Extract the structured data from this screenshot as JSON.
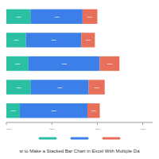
{
  "chart_data": {
    "type": "bar",
    "orientation": "horizontal",
    "stacked": true,
    "title": "w to Make a Stacked Bar Chart in Excel With Multiple Da",
    "categories": [
      null,
      null,
      null,
      null,
      null
    ],
    "series": [
      {
        "color": "#2bbfa4",
        "values": [
          0.2,
          0.16,
          0.18,
          0.2,
          0.11
        ],
        "value_labels": [
          "—",
          "—",
          "—",
          "—",
          "—"
        ]
      },
      {
        "color": "#3d7fe8",
        "values": [
          0.42,
          0.45,
          0.58,
          0.47,
          0.55
        ],
        "value_labels": [
          "—",
          "—",
          "—",
          "—",
          "—"
        ]
      },
      {
        "color": "#e8705a",
        "values": [
          0.12,
          0.11,
          0.16,
          0.13,
          0.1
        ],
        "value_labels": [
          "—",
          "—",
          "—",
          "—",
          "—"
        ]
      }
    ],
    "data_labels": true,
    "xlim": [
      0,
      1.19
    ],
    "xticks": [
      {
        "value": 0.0,
        "label": "—"
      },
      {
        "value": 0.37,
        "label": "—"
      },
      {
        "value": 0.74,
        "label": "—"
      },
      {
        "value": 1.11,
        "label": "—"
      }
    ],
    "grid": false,
    "legend": "bottom"
  }
}
